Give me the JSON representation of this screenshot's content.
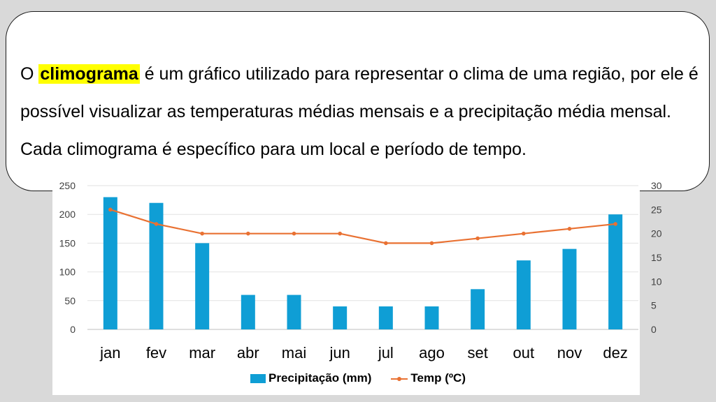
{
  "text_card": {
    "before": "O ",
    "highlight": "climograma",
    "after": " é um gráfico utilizado para representar o clima de uma região, por ele é possível visualizar as temperaturas médias mensais e a precipitação média mensal. Cada climograma é específico para um local e período de tempo."
  },
  "colors": {
    "bar": "#0f9ed5",
    "line": "#e97132",
    "highlight": "#ffff00",
    "grid": "#e2e2e2"
  },
  "chart_data": {
    "type": "bar+line",
    "categories": [
      "jan",
      "fev",
      "mar",
      "abr",
      "mai",
      "jun",
      "jul",
      "ago",
      "set",
      "out",
      "nov",
      "dez"
    ],
    "series": [
      {
        "name": "Precipitação (mm)",
        "type": "bar",
        "axis": "left",
        "values": [
          230,
          220,
          150,
          60,
          60,
          40,
          40,
          40,
          70,
          120,
          140,
          200
        ]
      },
      {
        "name": "Temp (ºC)",
        "type": "line",
        "axis": "right",
        "values": [
          25,
          22,
          20,
          20,
          20,
          20,
          18,
          18,
          19,
          20,
          21,
          22
        ]
      }
    ],
    "y_left": {
      "lim": [
        0,
        250
      ],
      "ticks": [
        "0",
        "50",
        "100",
        "150",
        "200",
        "250"
      ]
    },
    "y_right": {
      "lim": [
        0,
        30
      ],
      "ticks": [
        "0",
        "5",
        "10",
        "15",
        "20",
        "25",
        "30"
      ]
    },
    "grid": true,
    "legend": "bottom"
  }
}
